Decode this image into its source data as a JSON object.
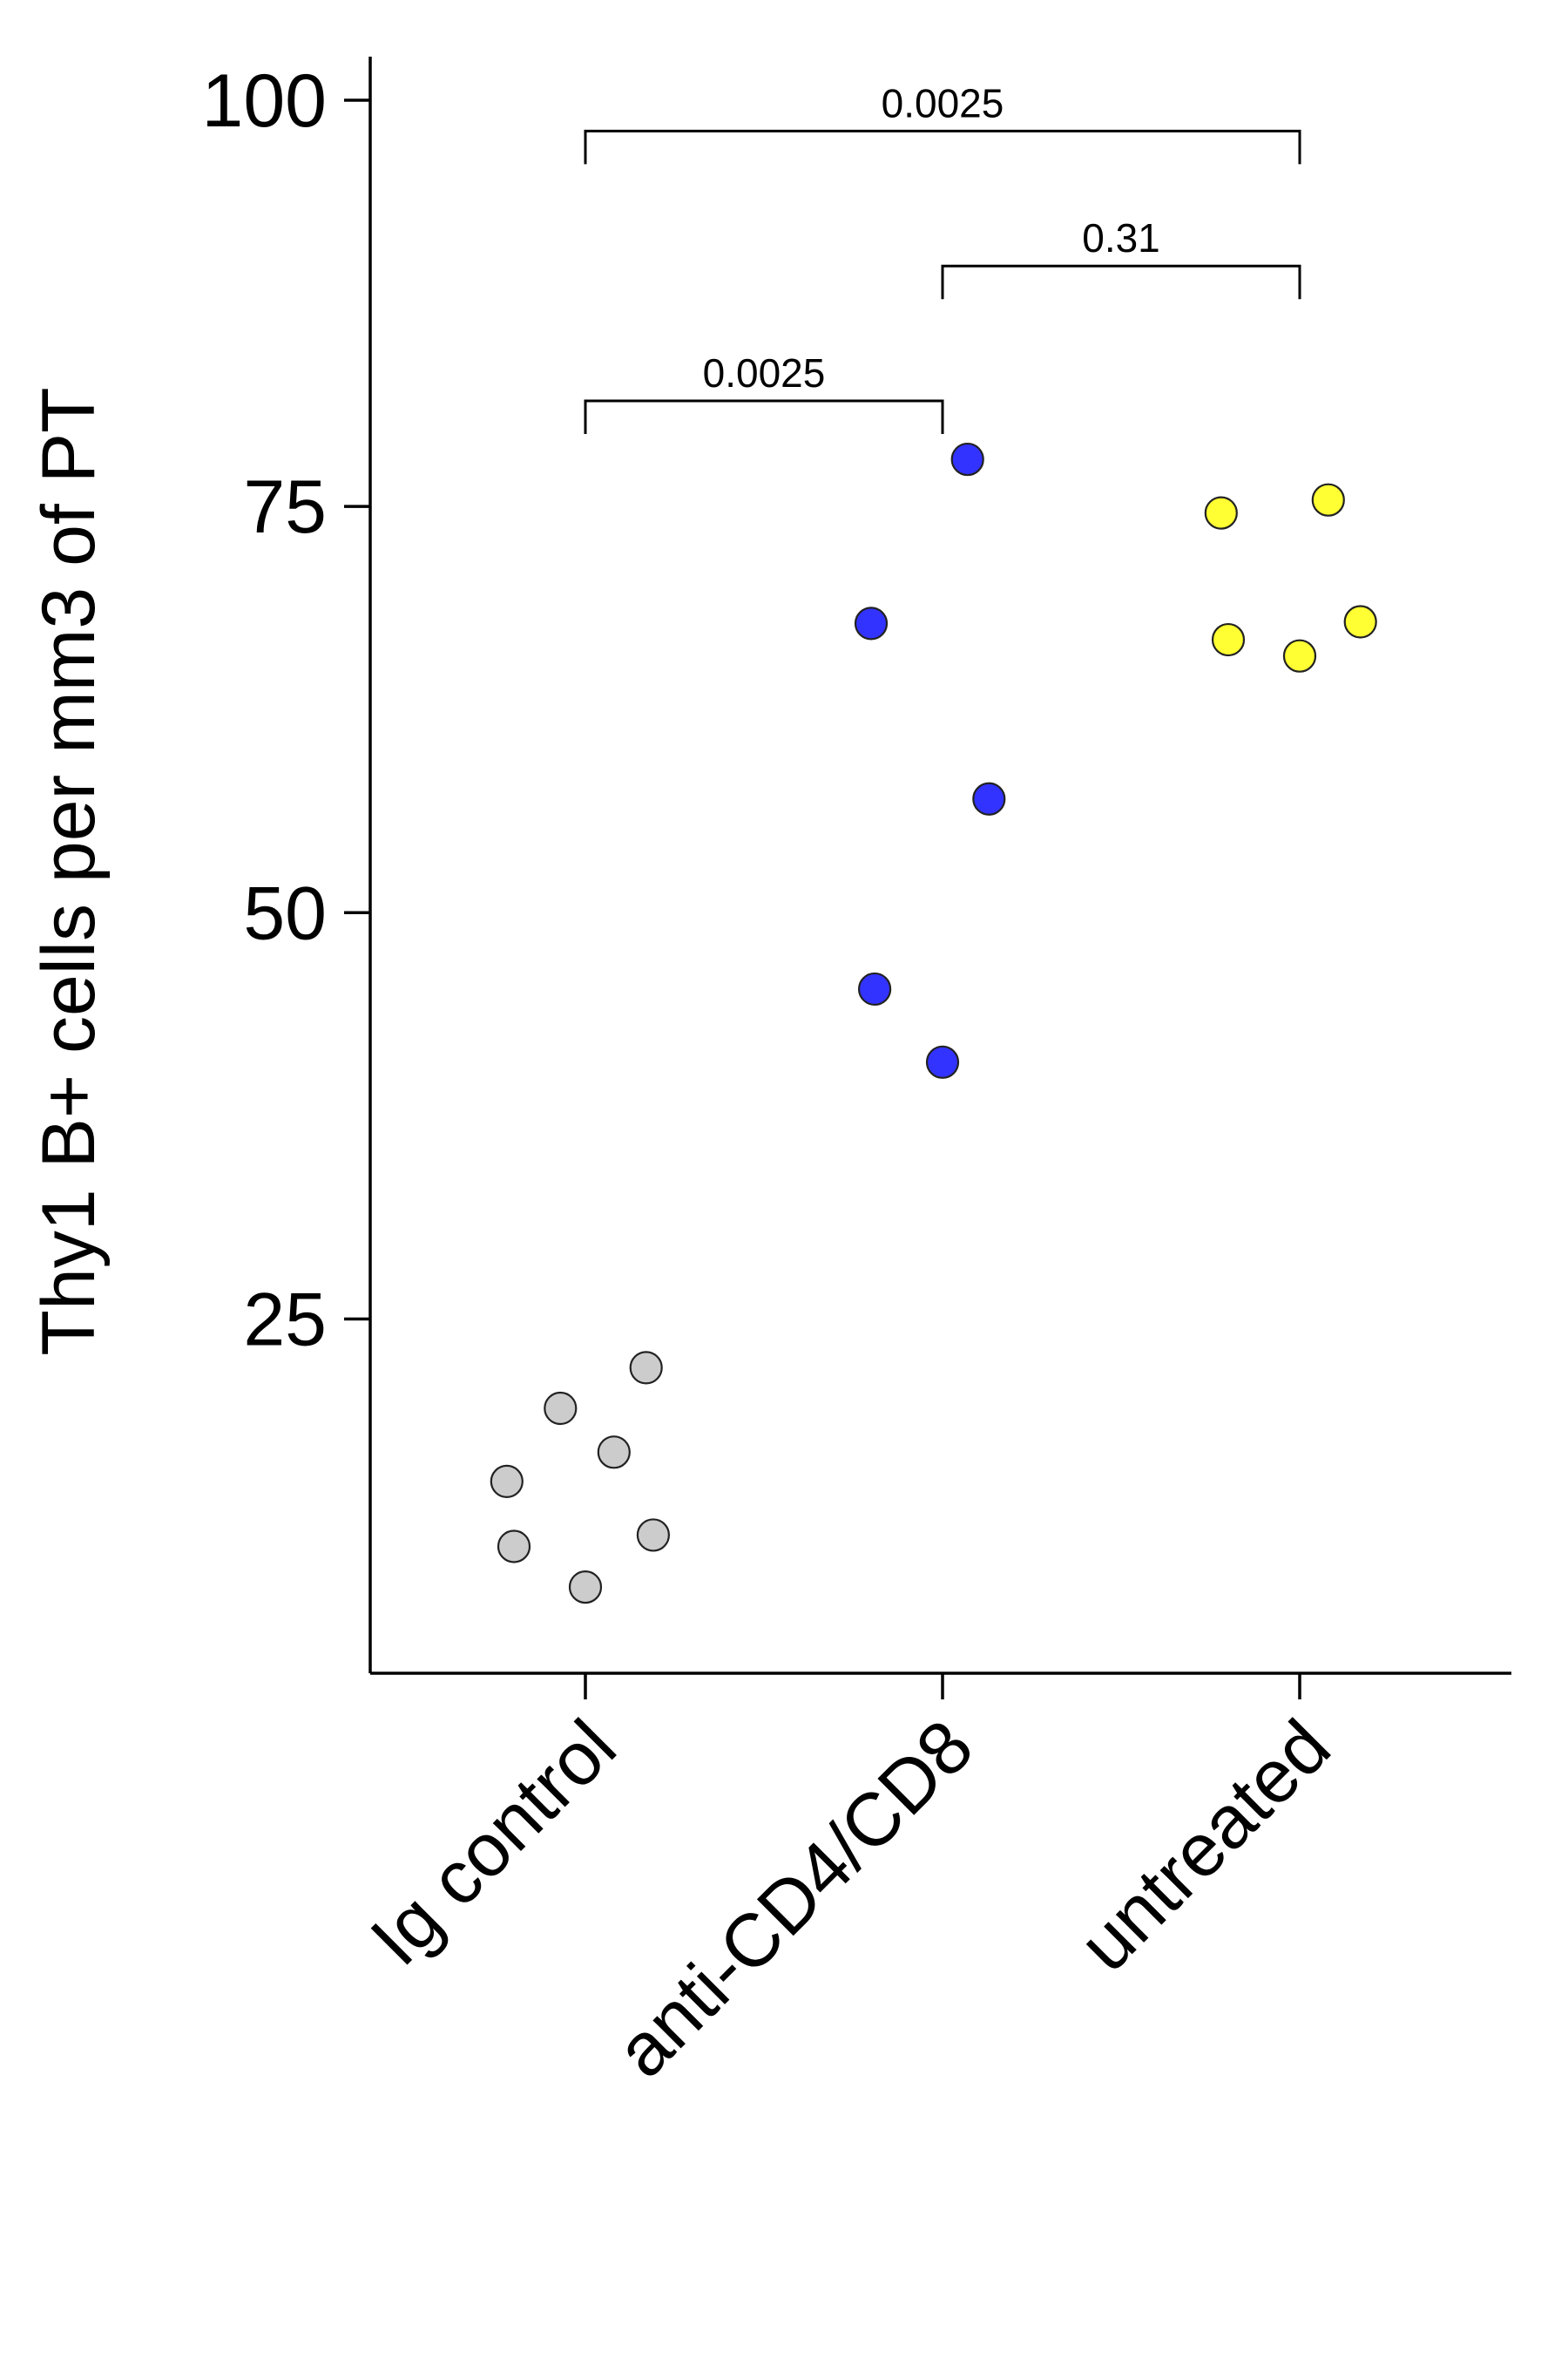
{
  "chart_data": {
    "type": "scatter",
    "ylabel": "Thy1 B+ cells per mm3 of PT",
    "yticks": [
      25,
      50,
      75,
      100
    ],
    "ylim": [
      4,
      102
    ],
    "categories": [
      "Ig control",
      "anti-CD4/CD8",
      "untreated"
    ],
    "grid": false,
    "legend": "none",
    "series": [
      {
        "category": "Ig control",
        "color": "#cccccc",
        "points": [
          {
            "jitter": 0.0,
            "y": 8.5
          },
          {
            "jitter": -0.2,
            "y": 11.0
          },
          {
            "jitter": -0.22,
            "y": 15.0
          },
          {
            "jitter": 0.19,
            "y": 11.7
          },
          {
            "jitter": -0.07,
            "y": 19.5
          },
          {
            "jitter": 0.08,
            "y": 16.8
          },
          {
            "jitter": 0.17,
            "y": 22.0
          }
        ]
      },
      {
        "category": "anti-CD4/CD8",
        "color": "#3333ff",
        "points": [
          {
            "jitter": 0.07,
            "y": 77.9
          },
          {
            "jitter": -0.2,
            "y": 67.8
          },
          {
            "jitter": 0.13,
            "y": 57.0
          },
          {
            "jitter": -0.19,
            "y": 45.3
          },
          {
            "jitter": 0.0,
            "y": 40.8
          }
        ]
      },
      {
        "category": "untreated",
        "color": "#ffff33",
        "points": [
          {
            "jitter": -0.22,
            "y": 74.6
          },
          {
            "jitter": 0.08,
            "y": 75.4
          },
          {
            "jitter": -0.2,
            "y": 66.8
          },
          {
            "jitter": 0.0,
            "y": 65.8
          },
          {
            "jitter": 0.17,
            "y": 67.9
          }
        ]
      }
    ],
    "comparisons": [
      {
        "from": 0,
        "to": 1,
        "y": 81.5,
        "label": "0.0025"
      },
      {
        "from": 1,
        "to": 2,
        "y": 89.8,
        "label": "0.31"
      },
      {
        "from": 0,
        "to": 2,
        "y": 98.1,
        "label": "0.0025"
      }
    ]
  }
}
